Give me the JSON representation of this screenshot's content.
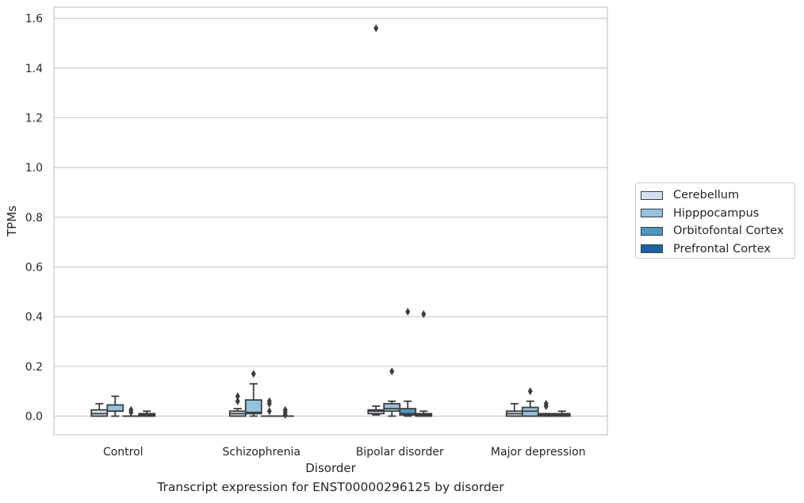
{
  "caption": "Transcript expression for ENST00000296125 by disorder",
  "colors": {
    "Cerebellum": "#d0e1f2",
    "Hipppocampus": "#94c4df",
    "Orbitofontal Cortex": "#4a98c9",
    "Prefrontal Cortex": "#1764ab",
    "box_edge": "#3d3d3d",
    "grid": "#cccccc"
  },
  "chart_data": {
    "type": "box",
    "title": "",
    "xlabel": "Disorder",
    "ylabel": "TPMs",
    "ylim": [
      -0.075,
      1.645
    ],
    "yticks": [
      0.0,
      0.2,
      0.4,
      0.6,
      0.8,
      1.0,
      1.2,
      1.4,
      1.6
    ],
    "ytick_labels": [
      "0.0",
      "0.2",
      "0.4",
      "0.6",
      "0.8",
      "1.0",
      "1.2",
      "1.4",
      "1.6"
    ],
    "grid": "horizontal",
    "legend_position": "right",
    "categories": [
      "Control",
      "Schizophrenia",
      "Bipolar disorder",
      "Major depression"
    ],
    "series": [
      {
        "name": "Cerebellum",
        "boxes": [
          {
            "whisker_low": 0.0,
            "q1": 0.0,
            "median": 0.01,
            "q3": 0.025,
            "whisker_high": 0.05,
            "outliers": []
          },
          {
            "whisker_low": 0.0,
            "q1": 0.0,
            "median": 0.01,
            "q3": 0.02,
            "whisker_high": 0.03,
            "outliers": [
              0.06,
              0.08
            ]
          },
          {
            "whisker_low": 0.005,
            "q1": 0.01,
            "median": 0.02,
            "q3": 0.025,
            "whisker_high": 0.04,
            "outliers": [
              1.56
            ]
          },
          {
            "whisker_low": 0.0,
            "q1": 0.0,
            "median": 0.01,
            "q3": 0.02,
            "whisker_high": 0.05,
            "outliers": []
          }
        ]
      },
      {
        "name": "Hipppocampus",
        "boxes": [
          {
            "whisker_low": 0.0,
            "q1": 0.02,
            "median": 0.02,
            "q3": 0.045,
            "whisker_high": 0.08,
            "outliers": []
          },
          {
            "whisker_low": 0.0,
            "q1": 0.01,
            "median": 0.015,
            "q3": 0.065,
            "whisker_high": 0.13,
            "outliers": [
              0.17
            ]
          },
          {
            "whisker_low": 0.0,
            "q1": 0.02,
            "median": 0.03,
            "q3": 0.05,
            "whisker_high": 0.06,
            "outliers": [
              0.18
            ]
          },
          {
            "whisker_low": 0.0,
            "q1": 0.0,
            "median": 0.02,
            "q3": 0.035,
            "whisker_high": 0.06,
            "outliers": [
              0.1
            ]
          }
        ]
      },
      {
        "name": "Orbitofontal Cortex",
        "boxes": [
          {
            "whisker_low": 0.0,
            "q1": 0.0,
            "median": 0.0,
            "q3": 0.0,
            "whisker_high": 0.0,
            "outliers": [
              0.015,
              0.025
            ]
          },
          {
            "whisker_low": 0.0,
            "q1": 0.0,
            "median": 0.0,
            "q3": 0.0,
            "whisker_high": 0.0,
            "outliers": [
              0.02,
              0.05,
              0.06
            ]
          },
          {
            "whisker_low": 0.0,
            "q1": 0.005,
            "median": 0.01,
            "q3": 0.03,
            "whisker_high": 0.06,
            "outliers": [
              0.42
            ]
          },
          {
            "whisker_low": 0.0,
            "q1": 0.0,
            "median": 0.005,
            "q3": 0.01,
            "whisker_high": 0.01,
            "outliers": [
              0.04,
              0.05
            ]
          }
        ]
      },
      {
        "name": "Prefrontal Cortex",
        "boxes": [
          {
            "whisker_low": 0.0,
            "q1": 0.0,
            "median": 0.005,
            "q3": 0.01,
            "whisker_high": 0.02,
            "outliers": []
          },
          {
            "whisker_low": 0.0,
            "q1": 0.0,
            "median": 0.0,
            "q3": 0.0,
            "whisker_high": 0.0,
            "outliers": [
              0.005,
              0.015,
              0.025
            ]
          },
          {
            "whisker_low": 0.0,
            "q1": 0.0,
            "median": 0.005,
            "q3": 0.01,
            "whisker_high": 0.02,
            "outliers": [
              0.41
            ]
          },
          {
            "whisker_low": 0.0,
            "q1": 0.0,
            "median": 0.005,
            "q3": 0.01,
            "whisker_high": 0.02,
            "outliers": []
          }
        ]
      }
    ]
  }
}
